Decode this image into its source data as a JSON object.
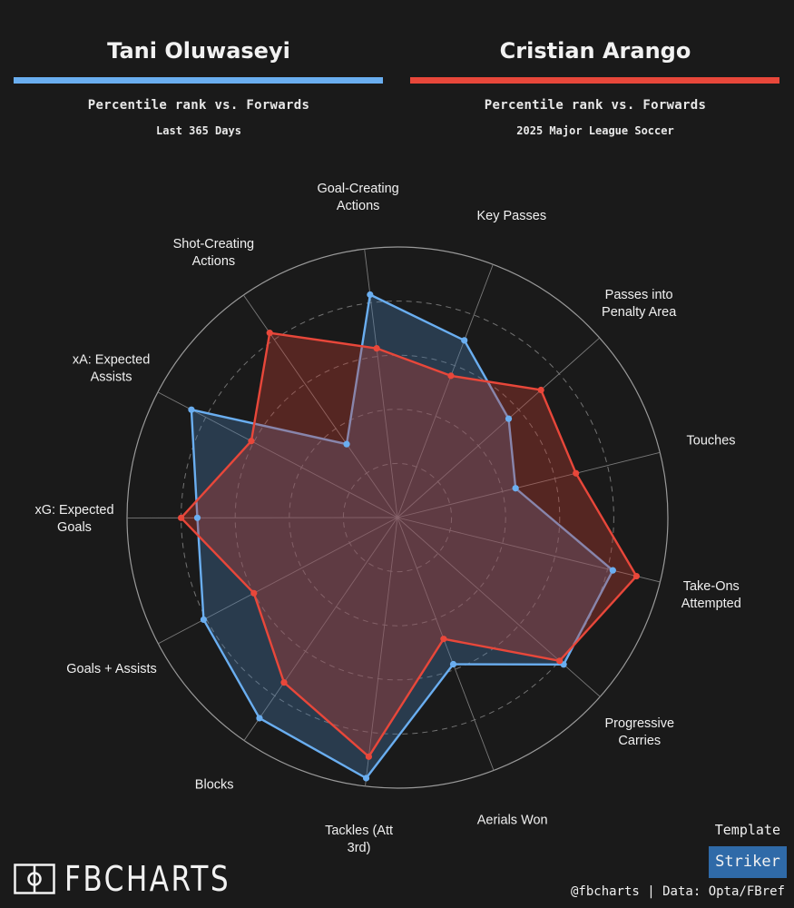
{
  "players": [
    {
      "name": "Tani Oluwaseyi",
      "color": "#6aaef0",
      "subtitle": "Percentile rank vs. Forwards",
      "subtitle2": "Last 365 Days"
    },
    {
      "name": "Cristian Arango",
      "color": "#e8473a",
      "subtitle": "Percentile rank vs. Forwards",
      "subtitle2": "2025 Major League Soccer"
    }
  ],
  "chart_data": {
    "type": "radar",
    "categories": [
      "Goal-Creating Actions",
      "Key Passes",
      "Passes into Penalty Area",
      "Touches",
      "Take-Ons Attempted",
      "Progressive Carries",
      "Aerials Won",
      "Tackles (Att 3rd)",
      "Blocks",
      "Goals + Assists",
      "xG: Expected Goals",
      "xA: Expected Assists",
      "Shot-Creating Actions"
    ],
    "range": [
      0,
      100
    ],
    "series": [
      {
        "name": "Tani Oluwaseyi",
        "values": [
          83,
          70,
          55,
          45,
          82,
          82,
          58,
          97,
          90,
          81,
          74,
          86,
          33
        ]
      },
      {
        "name": "Cristian Arango",
        "values": [
          63,
          56,
          71,
          68,
          91,
          80,
          48,
          89,
          74,
          60,
          80,
          61,
          83
        ]
      }
    ]
  },
  "template": {
    "label": "Template",
    "value": "Striker"
  },
  "logo_text": "FBCHARTS",
  "credit": "@fbcharts | Data: Opta/FBref"
}
